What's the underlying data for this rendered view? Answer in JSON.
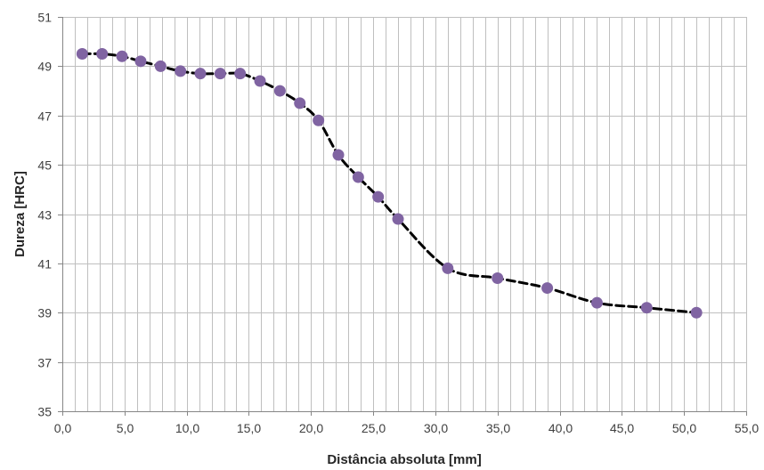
{
  "chart_data": {
    "type": "line",
    "title": "",
    "xlabel": "Distância absoluta [mm]",
    "ylabel": "Dureza [HRC]",
    "xlim": [
      0,
      55
    ],
    "ylim": [
      35,
      51
    ],
    "x_ticks": [
      0,
      5,
      10,
      15,
      20,
      25,
      30,
      35,
      40,
      45,
      50,
      55
    ],
    "x_tick_labels": [
      "0,0",
      "5,0",
      "10,0",
      "15,0",
      "20,0",
      "25,0",
      "30,0",
      "35,0",
      "40,0",
      "45,0",
      "50,0",
      "55,0"
    ],
    "y_ticks": [
      35,
      37,
      39,
      41,
      43,
      45,
      47,
      49,
      51
    ],
    "y_tick_labels": [
      "35",
      "37",
      "39",
      "41",
      "43",
      "45",
      "47",
      "49",
      "51"
    ],
    "x_minor_grid_step": 1,
    "y_grid_step": 2,
    "grid": true,
    "legend": "none",
    "series": [
      {
        "x": [
          1.6,
          3.2,
          4.8,
          6.3,
          7.9,
          9.5,
          11.1,
          12.7,
          14.3,
          15.9,
          17.5,
          19.1,
          20.6,
          22.2,
          23.8,
          25.4,
          27.0,
          31.0,
          35.0,
          39.0,
          43.0,
          47.0,
          51.0
        ],
        "y": [
          49.5,
          49.5,
          49.4,
          49.2,
          49.0,
          48.8,
          48.7,
          48.7,
          48.7,
          48.4,
          48.0,
          47.5,
          46.8,
          45.4,
          44.5,
          43.7,
          42.8,
          40.8,
          40.4,
          40.0,
          39.4,
          39.2,
          39.0
        ]
      }
    ],
    "colors": {
      "marker": "#8064A2",
      "line": "#000000",
      "grid": "#BFBFBF",
      "axis": "#868686",
      "plot_border": "#BFBFBF"
    }
  }
}
